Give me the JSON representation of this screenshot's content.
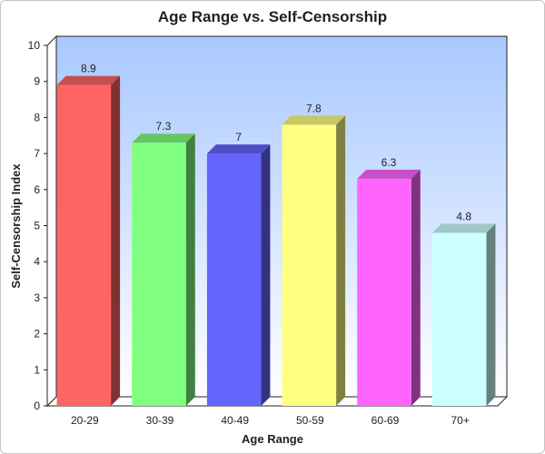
{
  "chart_data": {
    "type": "bar",
    "title": "Age Range vs. Self-Censorship",
    "xlabel": "Age Range",
    "ylabel": "Self-Censorship Index",
    "categories": [
      "20-29",
      "30-39",
      "40-49",
      "50-59",
      "60-69",
      "70+"
    ],
    "values": [
      8.9,
      7.3,
      7,
      7.8,
      6.3,
      4.8
    ],
    "value_labels": [
      "8.9",
      "7.3",
      "7",
      "7.8",
      "6.3",
      "4.8"
    ],
    "ylim": [
      0,
      10
    ],
    "yticks": [
      "0",
      "1",
      "2",
      "3",
      "4",
      "5",
      "6",
      "7",
      "8",
      "9",
      "10"
    ],
    "grid": false,
    "style": "3d",
    "colors": [
      "#ff6464",
      "#80ff80",
      "#6464ff",
      "#ffff80",
      "#ff64ff",
      "#ccffff"
    ],
    "plot_background": [
      "#a8c8ff",
      "#ffffff"
    ]
  }
}
